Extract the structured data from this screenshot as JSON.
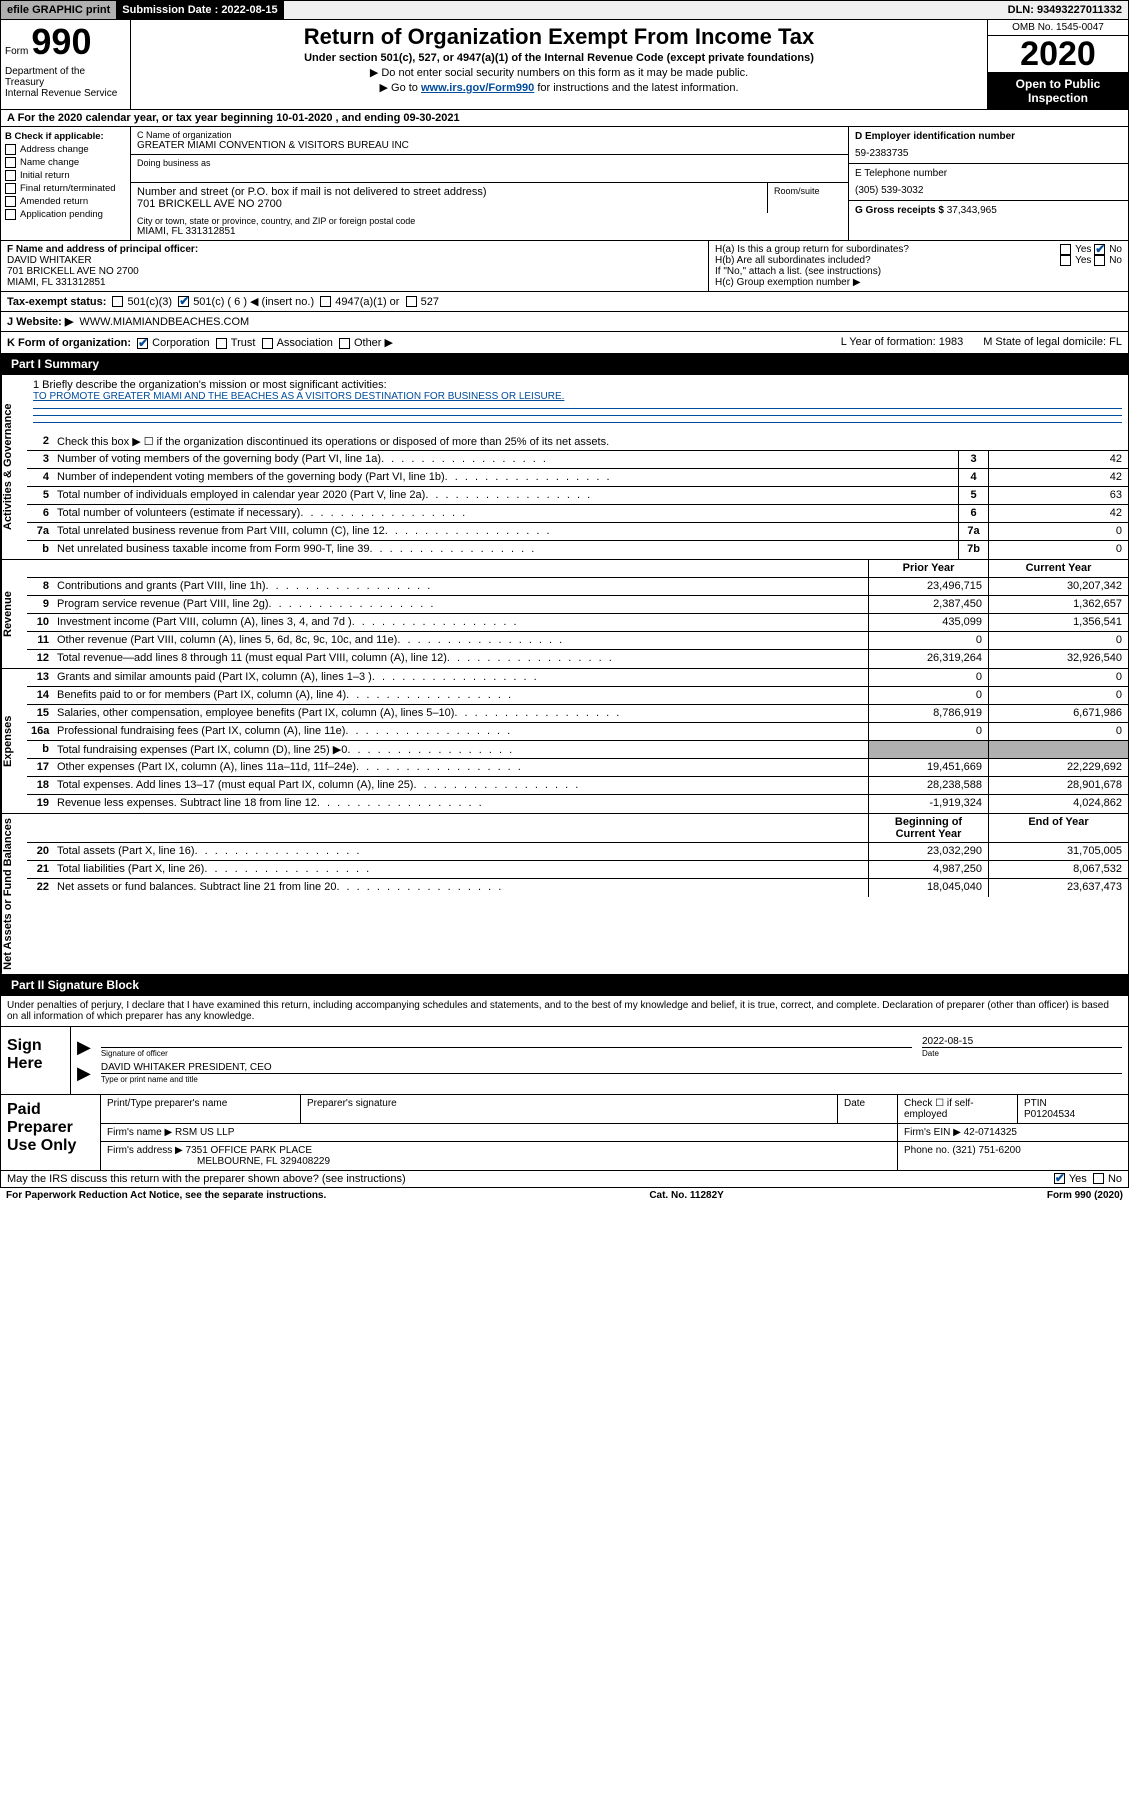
{
  "top": {
    "efile": "efile GRAPHIC print",
    "submission_label": "Submission Date : 2022-08-15",
    "dln": "DLN: 93493227011332"
  },
  "header": {
    "form_word": "Form",
    "form_num": "990",
    "title": "Return of Organization Exempt From Income Tax",
    "subtitle": "Under section 501(c), 527, or 4947(a)(1) of the Internal Revenue Code (except private foundations)",
    "sub2": "▶ Do not enter social security numbers on this form as it may be made public.",
    "sub3_pre": "▶ Go to ",
    "sub3_link": "www.irs.gov/Form990",
    "sub3_post": " for instructions and the latest information.",
    "dept": "Department of the Treasury\nInternal Revenue Service",
    "omb": "OMB No. 1545-0047",
    "year": "2020",
    "open": "Open to Public Inspection"
  },
  "lineA": "A For the 2020 calendar year, or tax year beginning 10-01-2020     , and ending 09-30-2021",
  "B": {
    "header": "B Check if applicable:",
    "addr_change": "Address change",
    "name_change": "Name change",
    "initial": "Initial return",
    "final": "Final return/terminated",
    "amended": "Amended return",
    "application": "Application pending"
  },
  "C": {
    "name_lbl": "C Name of organization",
    "name": "GREATER MIAMI CONVENTION & VISITORS BUREAU INC",
    "dba_lbl": "Doing business as",
    "street_lbl": "Number and street (or P.O. box if mail is not delivered to street address)",
    "room_lbl": "Room/suite",
    "street": "701 BRICKELL AVE NO 2700",
    "city_lbl": "City or town, state or province, country, and ZIP or foreign postal code",
    "city": "MIAMI, FL  331312851"
  },
  "D": {
    "lbl": "D Employer identification number",
    "val": "59-2383735"
  },
  "E": {
    "lbl": "E Telephone number",
    "val": "(305) 539-3032"
  },
  "G": {
    "lbl": "G Gross receipts $",
    "val": "37,343,965"
  },
  "F": {
    "lbl": "F Name and address of principal officer:",
    "name": "DAVID WHITAKER",
    "addr1": "701 BRICKELL AVE NO 2700",
    "addr2": "MIAMI, FL  331312851"
  },
  "H": {
    "a": "H(a)  Is this a group return for subordinates?",
    "b": "H(b)  Are all subordinates included?",
    "note": "If \"No,\" attach a list. (see instructions)",
    "c": "H(c)  Group exemption number ▶",
    "yes": "Yes",
    "no": "No"
  },
  "I": {
    "lbl": "Tax-exempt status:",
    "c3": "501(c)(3)",
    "c": "501(c) ( 6 ) ◀ (insert no.)",
    "a1": "4947(a)(1) or",
    "527": "527"
  },
  "J": {
    "lbl": "J     Website: ▶",
    "val": "WWW.MIAMIANDBEACHES.COM"
  },
  "K": {
    "lbl": "K Form of organization:",
    "corp": "Corporation",
    "trust": "Trust",
    "assoc": "Association",
    "other": "Other ▶",
    "L": "L Year of formation: 1983",
    "M": "M State of legal domicile: FL"
  },
  "part1": {
    "hdr": "Part I      Summary",
    "q1_lbl": "1  Briefly describe the organization's mission or most significant activities:",
    "q1_val": "TO PROMOTE GREATER MIAMI AND THE BEACHES AS A VISITORS DESTINATION FOR BUSINESS OR LEISURE.",
    "q2": "Check this box ▶ ☐  if the organization discontinued its operations or disposed of more than 25% of its net assets.",
    "side_gov": "Activities & Governance",
    "side_rev": "Revenue",
    "side_exp": "Expenses",
    "side_net": "Net Assets or Fund Balances",
    "prior": "Prior Year",
    "current": "Current Year",
    "beg": "Beginning of Current Year",
    "end": "End of Year",
    "rows_gov": [
      {
        "n": "3",
        "d": "Number of voting members of the governing body (Part VI, line 1a)",
        "c": "3",
        "v": "42"
      },
      {
        "n": "4",
        "d": "Number of independent voting members of the governing body (Part VI, line 1b)",
        "c": "4",
        "v": "42"
      },
      {
        "n": "5",
        "d": "Total number of individuals employed in calendar year 2020 (Part V, line 2a)",
        "c": "5",
        "v": "63"
      },
      {
        "n": "6",
        "d": "Total number of volunteers (estimate if necessary)",
        "c": "6",
        "v": "42"
      },
      {
        "n": "7a",
        "d": "Total unrelated business revenue from Part VIII, column (C), line 12",
        "c": "7a",
        "v": "0"
      },
      {
        "n": "b",
        "d": "Net unrelated business taxable income from Form 990-T, line 39",
        "c": "7b",
        "v": "0"
      }
    ],
    "rows_rev": [
      {
        "n": "8",
        "d": "Contributions and grants (Part VIII, line 1h)",
        "p": "23,496,715",
        "c": "30,207,342"
      },
      {
        "n": "9",
        "d": "Program service revenue (Part VIII, line 2g)",
        "p": "2,387,450",
        "c": "1,362,657"
      },
      {
        "n": "10",
        "d": "Investment income (Part VIII, column (A), lines 3, 4, and 7d )",
        "p": "435,099",
        "c": "1,356,541"
      },
      {
        "n": "11",
        "d": "Other revenue (Part VIII, column (A), lines 5, 6d, 8c, 9c, 10c, and 11e)",
        "p": "0",
        "c": "0"
      },
      {
        "n": "12",
        "d": "Total revenue—add lines 8 through 11 (must equal Part VIII, column (A), line 12)",
        "p": "26,319,264",
        "c": "32,926,540"
      }
    ],
    "rows_exp": [
      {
        "n": "13",
        "d": "Grants and similar amounts paid (Part IX, column (A), lines 1–3 )",
        "p": "0",
        "c": "0"
      },
      {
        "n": "14",
        "d": "Benefits paid to or for members (Part IX, column (A), line 4)",
        "p": "0",
        "c": "0"
      },
      {
        "n": "15",
        "d": "Salaries, other compensation, employee benefits (Part IX, column (A), lines 5–10)",
        "p": "8,786,919",
        "c": "6,671,986"
      },
      {
        "n": "16a",
        "d": "Professional fundraising fees (Part IX, column (A), line 11e)",
        "p": "0",
        "c": "0"
      },
      {
        "n": "b",
        "d": "Total fundraising expenses (Part IX, column (D), line 25) ▶0",
        "p": "grey",
        "c": "grey"
      },
      {
        "n": "17",
        "d": "Other expenses (Part IX, column (A), lines 11a–11d, 11f–24e)",
        "p": "19,451,669",
        "c": "22,229,692"
      },
      {
        "n": "18",
        "d": "Total expenses. Add lines 13–17 (must equal Part IX, column (A), line 25)",
        "p": "28,238,588",
        "c": "28,901,678"
      },
      {
        "n": "19",
        "d": "Revenue less expenses. Subtract line 18 from line 12",
        "p": "-1,919,324",
        "c": "4,024,862"
      }
    ],
    "rows_net": [
      {
        "n": "20",
        "d": "Total assets (Part X, line 16)",
        "p": "23,032,290",
        "c": "31,705,005"
      },
      {
        "n": "21",
        "d": "Total liabilities (Part X, line 26)",
        "p": "4,987,250",
        "c": "8,067,532"
      },
      {
        "n": "22",
        "d": "Net assets or fund balances. Subtract line 21 from line 20",
        "p": "18,045,040",
        "c": "23,637,473"
      }
    ]
  },
  "part2": {
    "hdr": "Part II      Signature Block",
    "text": "Under penalties of perjury, I declare that I have examined this return, including accompanying schedules and statements, and to the best of my knowledge and belief, it is true, correct, and complete. Declaration of preparer (other than officer) is based on all information of which preparer has any knowledge.",
    "sign_here": "Sign Here",
    "sig_officer_lbl": "Signature of officer",
    "date_lbl": "Date",
    "date": "2022-08-15",
    "officer": "DAVID WHITAKER  PRESIDENT, CEO",
    "type_lbl": "Type or print name and title",
    "paid": "Paid Preparer Use Only",
    "print_lbl": "Print/Type preparer's name",
    "prep_sig_lbl": "Preparer's signature",
    "check_self": "Check ☐ if self-employed",
    "ptin_lbl": "PTIN",
    "ptin": "P01204534",
    "firm_name_lbl": "Firm's name   ▶",
    "firm_name": "RSM US LLP",
    "firm_ein_lbl": "Firm's EIN ▶",
    "firm_ein": "42-0714325",
    "firm_addr_lbl": "Firm's address ▶",
    "firm_addr1": "7351 OFFICE PARK PLACE",
    "firm_addr2": "MELBOURNE, FL  329408229",
    "phone_lbl": "Phone no.",
    "phone": "(321) 751-6200",
    "discuss": "May the IRS discuss this return with the preparer shown above? (see instructions)"
  },
  "footer": {
    "paperwork": "For Paperwork Reduction Act Notice, see the separate instructions.",
    "cat": "Cat. No. 11282Y",
    "form": "Form 990 (2020)"
  }
}
